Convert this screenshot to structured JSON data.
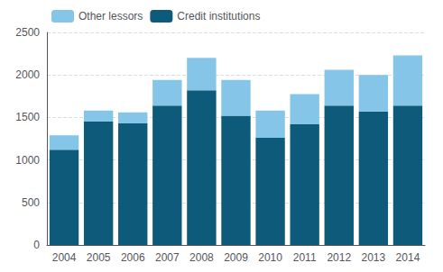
{
  "chart_data": {
    "type": "bar",
    "stacked": true,
    "categories": [
      "2004",
      "2005",
      "2006",
      "2007",
      "2008",
      "2009",
      "2010",
      "2011",
      "2012",
      "2013",
      "2014"
    ],
    "series": [
      {
        "name": "Credit institutions",
        "color": "#0d5a7a",
        "values": [
          1120,
          1450,
          1430,
          1640,
          1820,
          1520,
          1260,
          1420,
          1640,
          1570,
          1640
        ]
      },
      {
        "name": "Other lessors",
        "color": "#85c5e8",
        "values": [
          170,
          130,
          130,
          300,
          380,
          420,
          320,
          355,
          420,
          430,
          590
        ]
      }
    ],
    "ylim": [
      0,
      2500
    ],
    "yticks": [
      0,
      500,
      1000,
      1500,
      2000,
      2500
    ],
    "grid": true,
    "legend": "upper left"
  }
}
